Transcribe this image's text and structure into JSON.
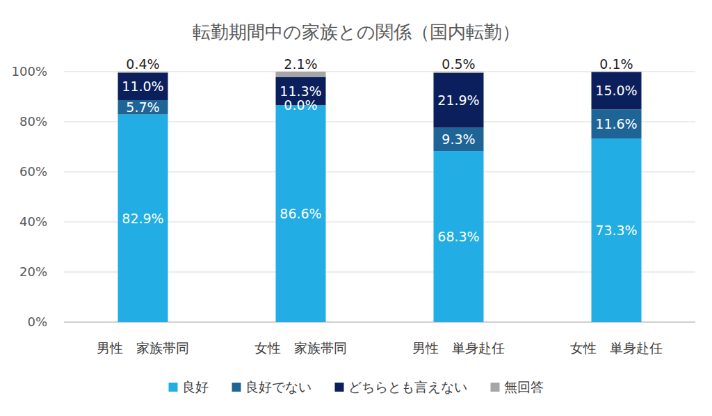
{
  "chart_data": {
    "type": "bar",
    "title": "転勤期間中の家族との関係（国内転勤）",
    "stacked": true,
    "data_labels": true,
    "grid": true,
    "legend": "bottom",
    "categories": [
      "男性　家族帯同",
      "女性　家族帯同",
      "男性　単身赴任",
      "女性　単身赴任"
    ],
    "ylim": [
      0,
      100
    ],
    "yticks": [
      {
        "value": 0,
        "label": "0%"
      },
      {
        "value": 20,
        "label": "20%"
      },
      {
        "value": 40,
        "label": "40%"
      },
      {
        "value": 60,
        "label": "60%"
      },
      {
        "value": 80,
        "label": "80%"
      },
      {
        "value": 100,
        "label": "100%"
      }
    ],
    "series": [
      {
        "name": "良好",
        "color": "#22ade4",
        "values": [
          82.9,
          86.6,
          68.3,
          73.3
        ],
        "value_labels": [
          "82.9%",
          "86.6%",
          "68.3%",
          "73.3%"
        ]
      },
      {
        "name": "良好でない",
        "color": "#1f6496",
        "values": [
          5.7,
          0.0,
          9.3,
          11.6
        ],
        "value_labels": [
          "5.7%",
          "0.0%",
          "9.3%",
          "11.6%"
        ]
      },
      {
        "name": "どちらとも言えない",
        "color": "#0b1f5c",
        "values": [
          11.0,
          11.3,
          21.9,
          15.0
        ],
        "value_labels": [
          "11.0%",
          "11.3%",
          "21.9%",
          "15.0%"
        ]
      },
      {
        "name": "無回答",
        "color": "#a6a6a6",
        "values": [
          0.4,
          2.1,
          0.5,
          0.1
        ],
        "value_labels": [
          "0.4%",
          "2.1%",
          "0.5%",
          "0.1%"
        ]
      }
    ]
  }
}
